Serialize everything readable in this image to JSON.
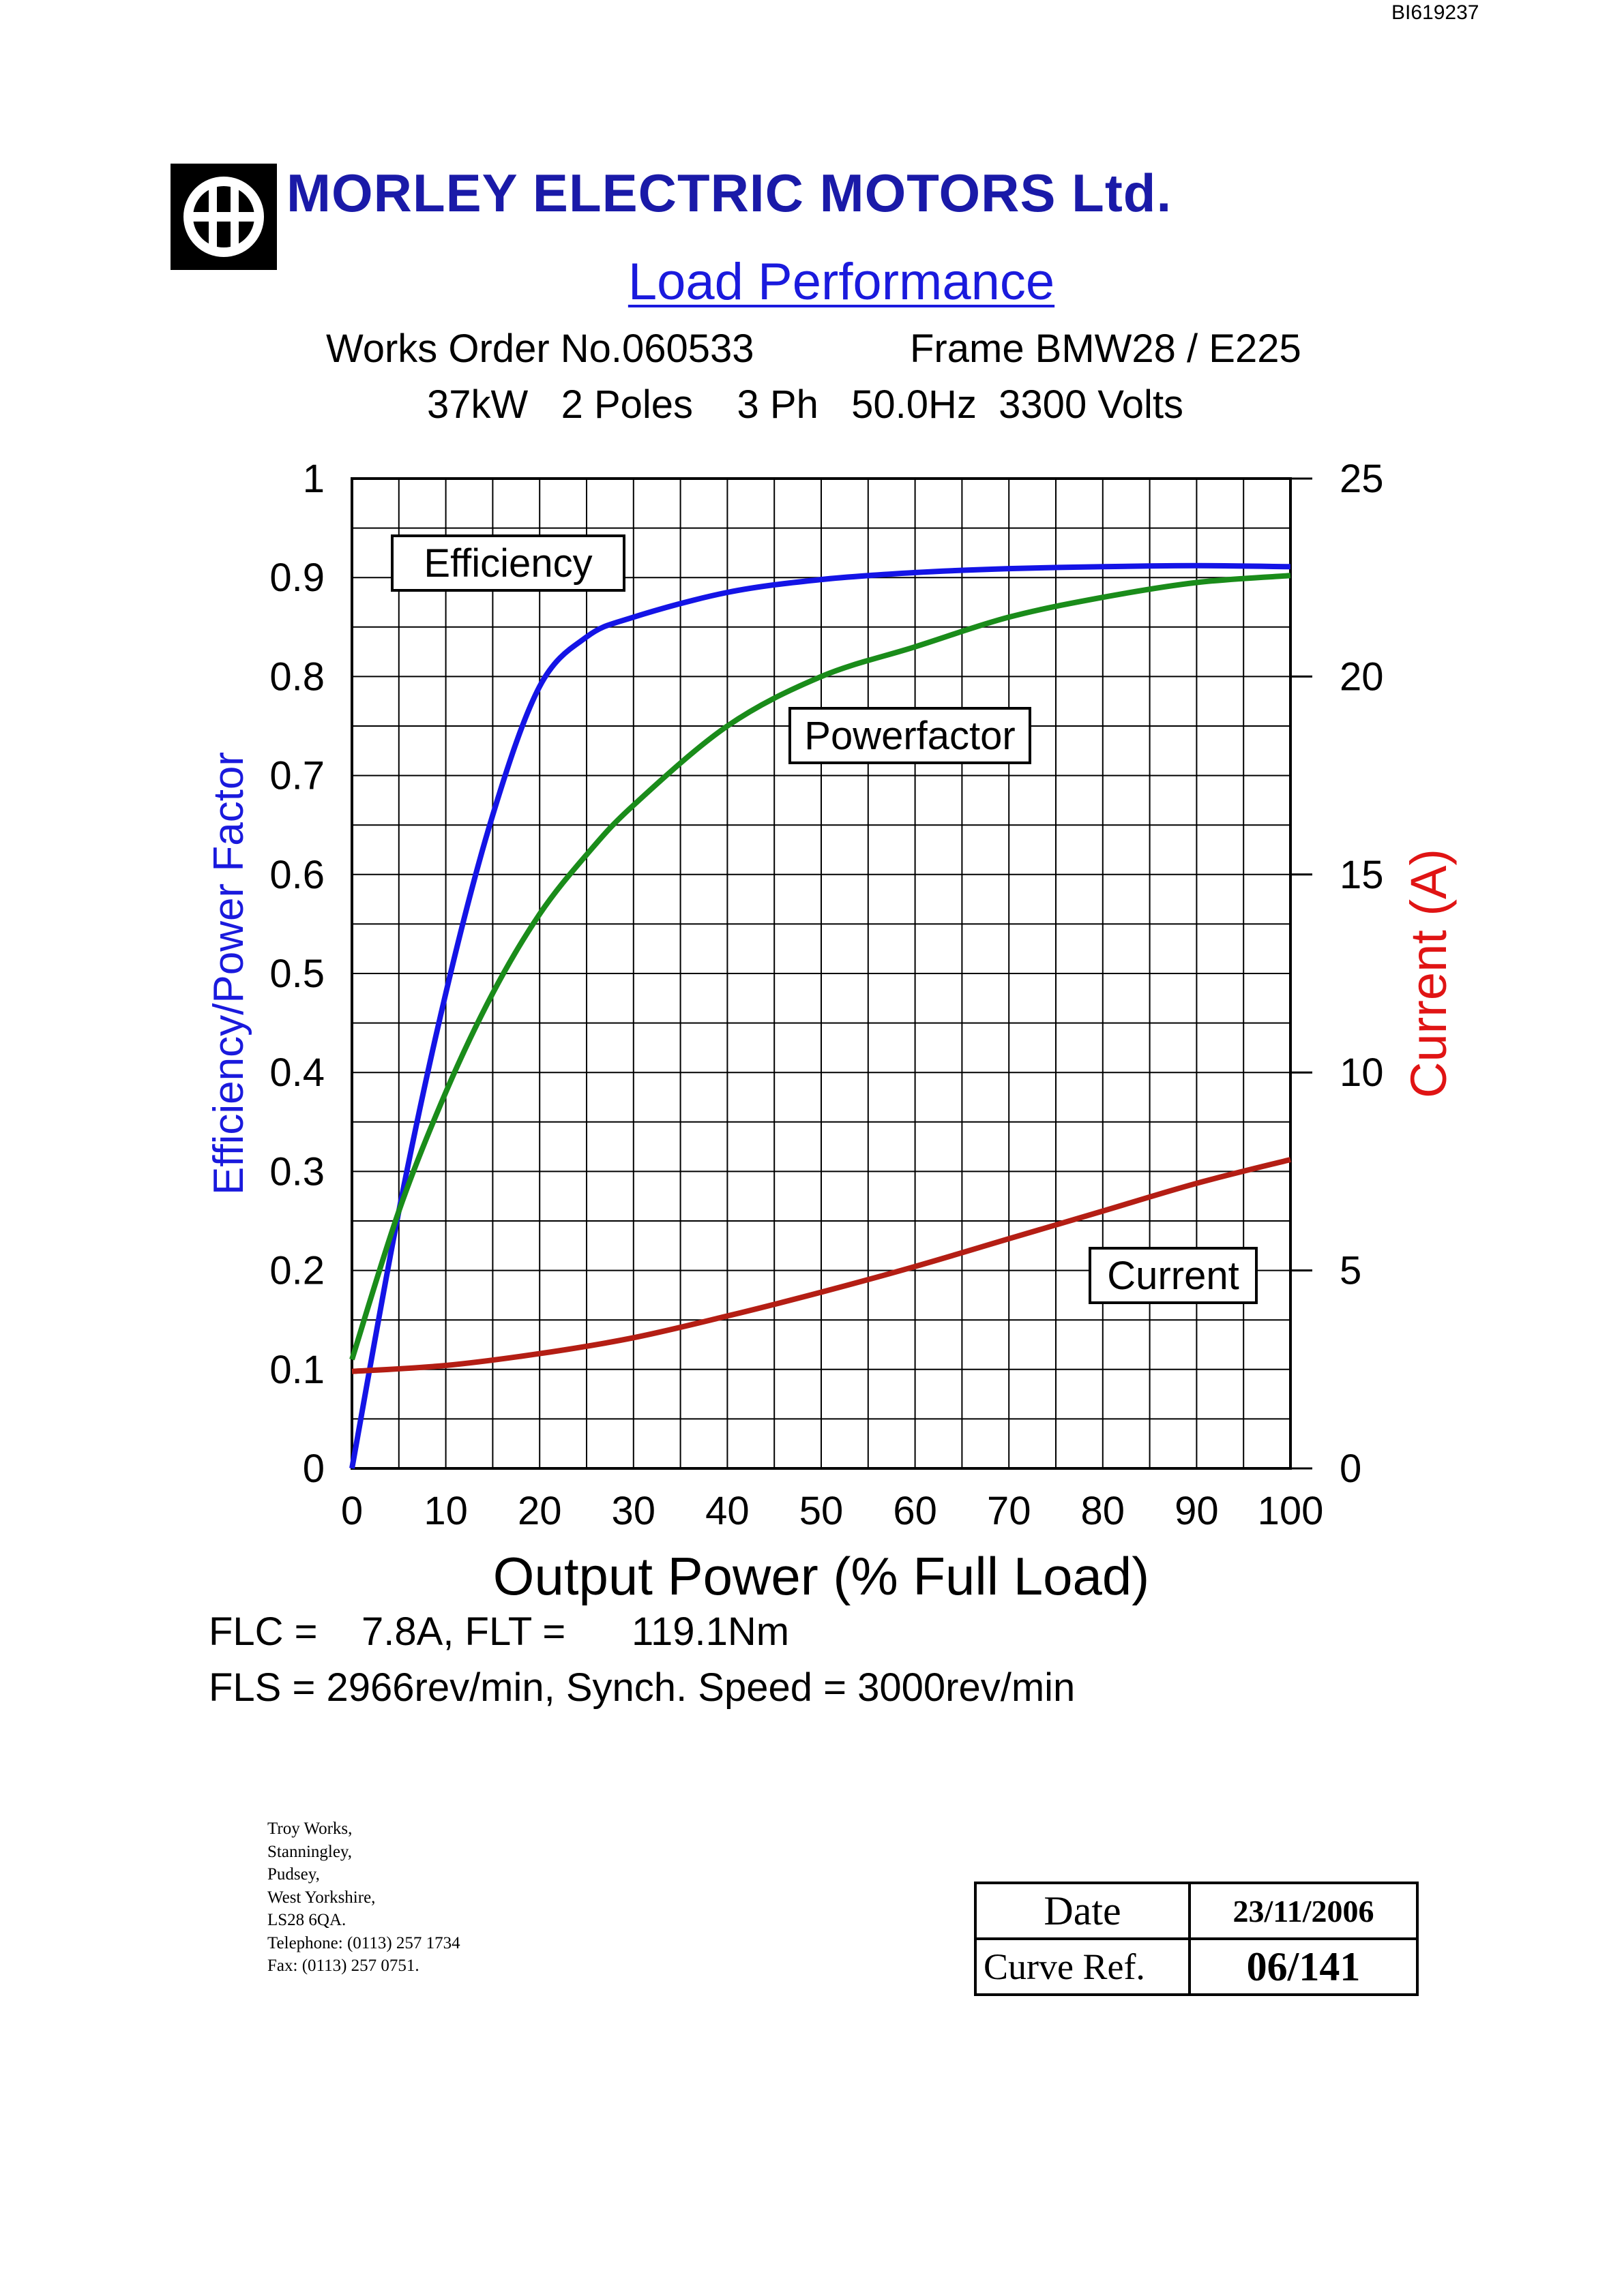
{
  "doc_ref": "BI619237",
  "company": {
    "name": "MORLEY ELECTRIC MOTORS Ltd.",
    "logo_icon": "morley-logo-icon"
  },
  "header": {
    "works_order": "Works Order No.060533",
    "frame": "Frame BMW28 / E225",
    "rating": "37kW   2 Poles    3 Ph   50.0Hz  3300 Volts"
  },
  "chart_data": {
    "type": "line",
    "title": "Load Performance",
    "xlabel": "Output Power (% Full Load)",
    "ylabel": "Efficiency/Power Factor",
    "y2label": "Current (A)",
    "xlim": [
      0,
      100
    ],
    "ylim": [
      0,
      1
    ],
    "y2lim": [
      0,
      25
    ],
    "x_ticks": [
      "0",
      "10",
      "20",
      "30",
      "40",
      "50",
      "60",
      "70",
      "80",
      "90",
      "100"
    ],
    "y_ticks": [
      "0",
      "0.1",
      "0.2",
      "0.3",
      "0.4",
      "0.5",
      "0.6",
      "0.7",
      "0.8",
      "0.9",
      "1"
    ],
    "y2_ticks": [
      "0",
      "5",
      "10",
      "15",
      "20",
      "25"
    ],
    "grid": true,
    "series": [
      {
        "name": "Efficiency",
        "axis": "left",
        "color": "#1414e6",
        "x": [
          0,
          5,
          10,
          15,
          20,
          25,
          30,
          40,
          50,
          60,
          70,
          80,
          90,
          100
        ],
        "y": [
          0.0,
          0.26,
          0.48,
          0.66,
          0.79,
          0.84,
          0.86,
          0.885,
          0.898,
          0.905,
          0.909,
          0.911,
          0.912,
          0.911
        ]
      },
      {
        "name": "Powerfactor",
        "axis": "left",
        "color": "#1a8c1a",
        "x": [
          0,
          5,
          10,
          15,
          20,
          25,
          30,
          40,
          50,
          60,
          70,
          80,
          90,
          100
        ],
        "y": [
          0.11,
          0.26,
          0.38,
          0.48,
          0.56,
          0.62,
          0.67,
          0.75,
          0.8,
          0.83,
          0.86,
          0.88,
          0.895,
          0.902
        ]
      },
      {
        "name": "Current",
        "axis": "right",
        "color": "#b41e14",
        "x": [
          0,
          10,
          20,
          30,
          40,
          50,
          60,
          70,
          80,
          90,
          100
        ],
        "y": [
          2.45,
          2.6,
          2.9,
          3.3,
          3.85,
          4.45,
          5.1,
          5.8,
          6.5,
          7.2,
          7.8
        ]
      }
    ],
    "annotations": [
      "Efficiency",
      "Powerfactor",
      "Current"
    ],
    "colors": {
      "left_axis_label": "#1a1add",
      "right_axis_label": "#e01414",
      "grid": "#000000"
    }
  },
  "footer": {
    "flc_flt": "FLC =    7.8A, FLT =      119.1Nm",
    "fls": "FLS = 2966rev/min, Synch. Speed = 3000rev/min"
  },
  "address": [
    "Troy Works,",
    "Stanningley,",
    "Pudsey,",
    "West Yorkshire,",
    "LS28 6QA.",
    "Telephone: (0113) 257 1734",
    "Fax: (0113) 257 0751."
  ],
  "meta_table": {
    "date_label": "Date",
    "date_value": "23/11/2006",
    "curve_ref_label": "Curve Ref.",
    "curve_ref_value": "06/141"
  }
}
